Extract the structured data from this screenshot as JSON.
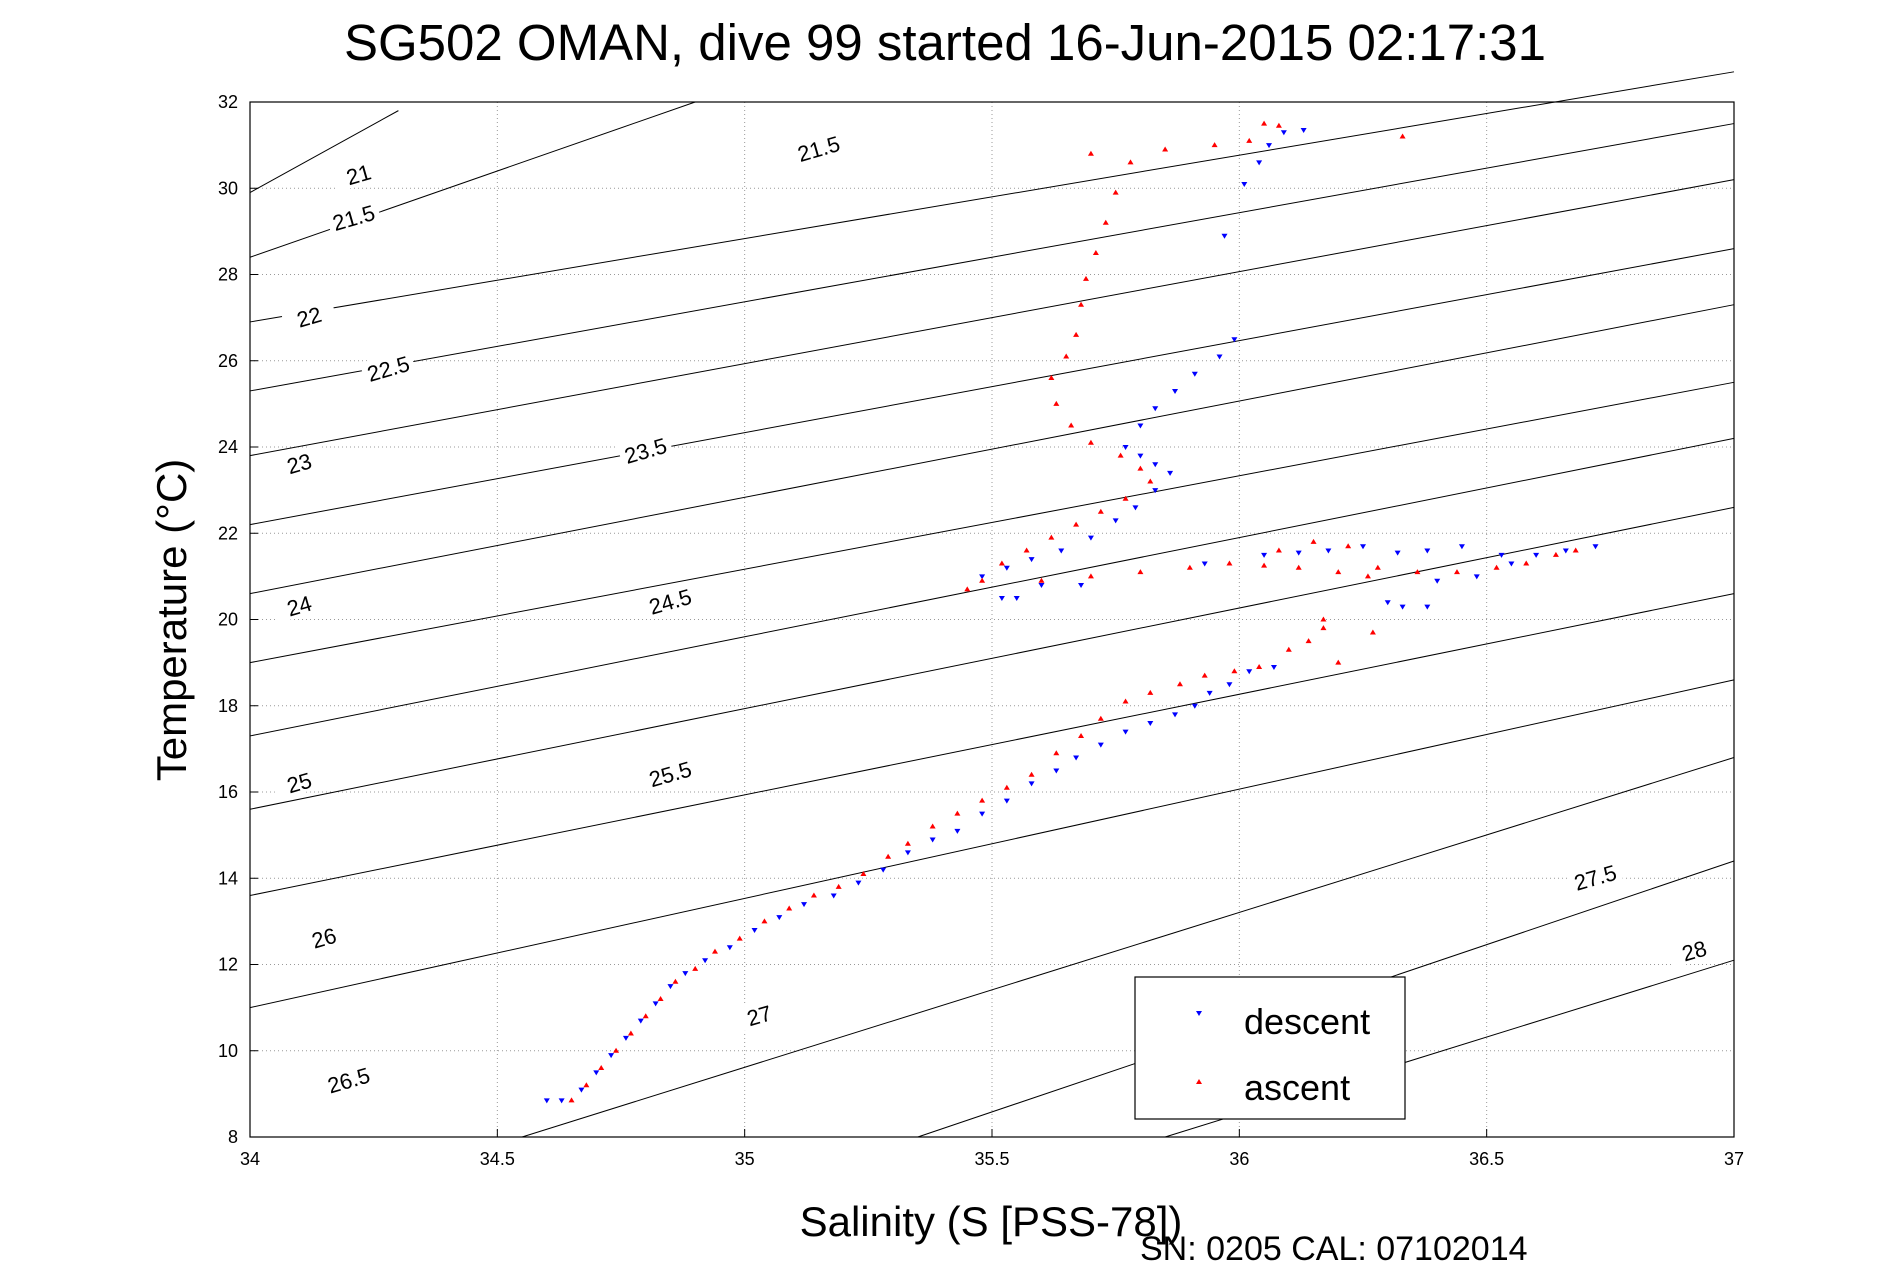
{
  "chart_data": {
    "type": "scatter",
    "title": "SG502 OMAN, dive 99 started 16-Jun-2015 02:17:31",
    "xlabel": "Salinity (S [PSS-78])",
    "ylabel": "Temperature (°C)",
    "xlim": [
      34,
      37
    ],
    "ylim": [
      8,
      32
    ],
    "xticks": [
      "34",
      "34.5",
      "35",
      "35.5",
      "36",
      "36.5",
      "37"
    ],
    "yticks": [
      "8",
      "10",
      "12",
      "14",
      "16",
      "18",
      "20",
      "22",
      "24",
      "26",
      "28",
      "30",
      "32"
    ],
    "grid": true,
    "legend_position": "bottom-right",
    "footer": "SN: 0205  CAL: 07102014",
    "series": [
      {
        "name": "descent",
        "color": "#0000ff",
        "marker": "triangle-down",
        "points": [
          [
            34.6,
            8.85
          ],
          [
            34.63,
            8.85
          ],
          [
            34.67,
            9.1
          ],
          [
            34.7,
            9.5
          ],
          [
            34.73,
            9.9
          ],
          [
            34.76,
            10.3
          ],
          [
            34.79,
            10.7
          ],
          [
            34.82,
            11.1
          ],
          [
            34.85,
            11.5
          ],
          [
            34.88,
            11.8
          ],
          [
            34.92,
            12.1
          ],
          [
            34.97,
            12.4
          ],
          [
            35.02,
            12.8
          ],
          [
            35.07,
            13.1
          ],
          [
            35.12,
            13.4
          ],
          [
            35.18,
            13.6
          ],
          [
            35.23,
            13.9
          ],
          [
            35.28,
            14.2
          ],
          [
            35.33,
            14.6
          ],
          [
            35.38,
            14.9
          ],
          [
            35.43,
            15.1
          ],
          [
            35.48,
            15.5
          ],
          [
            35.53,
            15.8
          ],
          [
            35.58,
            16.2
          ],
          [
            35.63,
            16.5
          ],
          [
            35.67,
            16.8
          ],
          [
            35.72,
            17.1
          ],
          [
            35.77,
            17.4
          ],
          [
            35.82,
            17.6
          ],
          [
            35.87,
            17.8
          ],
          [
            35.91,
            18.0
          ],
          [
            35.94,
            18.3
          ],
          [
            35.98,
            18.5
          ],
          [
            36.02,
            18.8
          ],
          [
            36.07,
            18.9
          ],
          [
            35.52,
            20.5
          ],
          [
            35.55,
            20.5
          ],
          [
            35.6,
            20.8
          ],
          [
            35.68,
            20.8
          ],
          [
            35.48,
            21.0
          ],
          [
            35.53,
            21.2
          ],
          [
            35.58,
            21.4
          ],
          [
            35.64,
            21.6
          ],
          [
            35.7,
            21.9
          ],
          [
            35.75,
            22.3
          ],
          [
            35.79,
            22.6
          ],
          [
            35.83,
            23.0
          ],
          [
            35.86,
            23.4
          ],
          [
            35.83,
            23.6
          ],
          [
            35.8,
            23.8
          ],
          [
            35.77,
            24.0
          ],
          [
            35.8,
            24.5
          ],
          [
            35.83,
            24.9
          ],
          [
            35.87,
            25.3
          ],
          [
            35.91,
            25.7
          ],
          [
            35.96,
            26.1
          ],
          [
            35.99,
            26.5
          ],
          [
            35.97,
            28.9
          ],
          [
            36.01,
            30.1
          ],
          [
            36.04,
            30.6
          ],
          [
            36.06,
            31.0
          ],
          [
            36.09,
            31.3
          ],
          [
            36.13,
            31.35
          ],
          [
            35.93,
            21.3
          ],
          [
            36.05,
            21.5
          ],
          [
            36.12,
            21.55
          ],
          [
            36.18,
            21.6
          ],
          [
            36.25,
            21.7
          ],
          [
            36.32,
            21.55
          ],
          [
            36.38,
            21.6
          ],
          [
            36.45,
            21.7
          ],
          [
            36.53,
            21.5
          ],
          [
            36.6,
            21.5
          ],
          [
            36.66,
            21.6
          ],
          [
            36.72,
            21.7
          ],
          [
            36.55,
            21.3
          ],
          [
            36.48,
            21.0
          ],
          [
            36.4,
            20.9
          ],
          [
            36.3,
            20.4
          ],
          [
            36.33,
            20.3
          ],
          [
            36.38,
            20.3
          ]
        ]
      },
      {
        "name": "ascent",
        "color": "#ff0000",
        "marker": "triangle-up",
        "points": [
          [
            34.65,
            8.85
          ],
          [
            34.68,
            9.2
          ],
          [
            34.71,
            9.6
          ],
          [
            34.74,
            10.0
          ],
          [
            34.77,
            10.4
          ],
          [
            34.8,
            10.8
          ],
          [
            34.83,
            11.2
          ],
          [
            34.86,
            11.6
          ],
          [
            34.9,
            11.9
          ],
          [
            34.94,
            12.3
          ],
          [
            34.99,
            12.6
          ],
          [
            35.04,
            13.0
          ],
          [
            35.09,
            13.3
          ],
          [
            35.14,
            13.6
          ],
          [
            35.19,
            13.8
          ],
          [
            35.24,
            14.1
          ],
          [
            35.29,
            14.5
          ],
          [
            35.33,
            14.8
          ],
          [
            35.38,
            15.2
          ],
          [
            35.43,
            15.5
          ],
          [
            35.48,
            15.8
          ],
          [
            35.53,
            16.1
          ],
          [
            35.58,
            16.4
          ],
          [
            35.63,
            16.9
          ],
          [
            35.68,
            17.3
          ],
          [
            35.72,
            17.7
          ],
          [
            35.77,
            18.1
          ],
          [
            35.82,
            18.3
          ],
          [
            35.88,
            18.5
          ],
          [
            35.93,
            18.7
          ],
          [
            35.99,
            18.8
          ],
          [
            36.04,
            18.9
          ],
          [
            36.1,
            19.3
          ],
          [
            36.14,
            19.5
          ],
          [
            36.17,
            19.8
          ],
          [
            36.27,
            19.7
          ],
          [
            36.2,
            19.0
          ],
          [
            35.45,
            20.7
          ],
          [
            35.48,
            20.9
          ],
          [
            35.52,
            21.3
          ],
          [
            35.57,
            21.6
          ],
          [
            35.62,
            21.9
          ],
          [
            35.67,
            22.2
          ],
          [
            35.72,
            22.5
          ],
          [
            35.77,
            22.8
          ],
          [
            35.82,
            23.2
          ],
          [
            35.8,
            23.5
          ],
          [
            35.76,
            23.8
          ],
          [
            35.7,
            24.1
          ],
          [
            35.66,
            24.5
          ],
          [
            35.63,
            25.0
          ],
          [
            35.62,
            25.6
          ],
          [
            35.65,
            26.1
          ],
          [
            35.67,
            26.6
          ],
          [
            35.68,
            27.3
          ],
          [
            35.69,
            27.9
          ],
          [
            35.71,
            28.5
          ],
          [
            35.73,
            29.2
          ],
          [
            35.75,
            29.9
          ],
          [
            35.78,
            30.6
          ],
          [
            35.7,
            30.8
          ],
          [
            35.85,
            30.9
          ],
          [
            35.95,
            31.0
          ],
          [
            36.02,
            31.1
          ],
          [
            36.05,
            31.5
          ],
          [
            36.08,
            31.45
          ],
          [
            36.33,
            31.2
          ],
          [
            35.6,
            20.9
          ],
          [
            35.7,
            21.0
          ],
          [
            35.8,
            21.1
          ],
          [
            35.9,
            21.2
          ],
          [
            35.98,
            21.3
          ],
          [
            36.05,
            21.25
          ],
          [
            36.12,
            21.2
          ],
          [
            36.2,
            21.1
          ],
          [
            36.28,
            21.2
          ],
          [
            36.36,
            21.1
          ],
          [
            36.44,
            21.1
          ],
          [
            36.52,
            21.2
          ],
          [
            36.58,
            21.3
          ],
          [
            36.64,
            21.5
          ],
          [
            36.68,
            21.6
          ],
          [
            36.22,
            21.7
          ],
          [
            36.15,
            21.8
          ],
          [
            36.08,
            21.6
          ],
          [
            36.26,
            21.0
          ],
          [
            36.17,
            20.0
          ]
        ]
      }
    ],
    "contours": [
      {
        "sigma": "21",
        "p0": [
          34,
          29.9
        ],
        "p1": [
          34.3,
          31.8
        ],
        "label_at": [
          34.22,
          30.3
        ],
        "angle": -16
      },
      {
        "sigma": "21.5",
        "p0": [
          34,
          28.4
        ],
        "p1": [
          34.9,
          32
        ],
        "label_at": [
          34.21,
          29.3
        ],
        "angle": -16
      },
      {
        "sigma": "21.5",
        "p0": [
          34.9,
          32
        ],
        "p1": [
          35.3,
          32
        ],
        "label_at": [
          35.15,
          30.9
        ],
        "angle": -16
      },
      {
        "sigma": "22",
        "p0": [
          34,
          26.9
        ],
        "p1": [
          37,
          32.7
        ],
        "label_at": [
          34.12,
          27.0
        ],
        "angle": -16
      },
      {
        "sigma": "22.5",
        "p0": [
          34,
          25.3
        ],
        "p1": [
          37,
          31.5
        ],
        "label_at": [
          34.28,
          25.8
        ],
        "angle": -16
      },
      {
        "sigma": "23",
        "p0": [
          34,
          23.8
        ],
        "p1": [
          37,
          30.2
        ],
        "label_at": [
          34.1,
          23.6
        ],
        "angle": -16
      },
      {
        "sigma": "23.5",
        "p0": [
          34,
          22.2
        ],
        "p1": [
          37,
          28.6
        ],
        "label_at": [
          34.8,
          23.9
        ],
        "angle": -16
      },
      {
        "sigma": "24",
        "p0": [
          34,
          20.6
        ],
        "p1": [
          37,
          27.3
        ],
        "label_at": [
          34.1,
          20.3
        ],
        "angle": -16
      },
      {
        "sigma": "24.5",
        "p0": [
          34,
          19.0
        ],
        "p1": [
          37,
          25.5
        ],
        "label_at": [
          34.85,
          20.4
        ],
        "angle": -16
      },
      {
        "sigma": "25",
        "p0": [
          34,
          17.3
        ],
        "p1": [
          37,
          24.2
        ],
        "label_at": [
          34.1,
          16.2
        ],
        "angle": -16
      },
      {
        "sigma": "25.5",
        "p0": [
          34,
          15.6
        ],
        "p1": [
          37,
          22.6
        ],
        "label_at": [
          34.85,
          16.4
        ],
        "angle": -16
      },
      {
        "sigma": "26",
        "p0": [
          34,
          13.6
        ],
        "p1": [
          37,
          20.6
        ],
        "label_at": [
          34.15,
          12.6
        ],
        "angle": -16
      },
      {
        "sigma": "26.5",
        "p0": [
          34,
          11.0
        ],
        "p1": [
          37,
          18.6
        ],
        "label_at": [
          34.2,
          9.3
        ],
        "angle": -16
      },
      {
        "sigma": "27",
        "p0": [
          34.55,
          8.0
        ],
        "p1": [
          37,
          16.8
        ],
        "label_at": [
          35.03,
          10.8
        ],
        "angle": -16
      },
      {
        "sigma": "27.5",
        "p0": [
          35.35,
          8.0
        ],
        "p1": [
          37,
          14.4
        ],
        "label_at": [
          36.72,
          14.0
        ],
        "angle": -16
      },
      {
        "sigma": "28",
        "p0": [
          35.85,
          8.0
        ],
        "p1": [
          37,
          12.1
        ],
        "label_at": [
          36.92,
          12.3
        ],
        "angle": -16
      }
    ]
  },
  "legend": {
    "descent_label": "descent",
    "ascent_label": "ascent"
  }
}
